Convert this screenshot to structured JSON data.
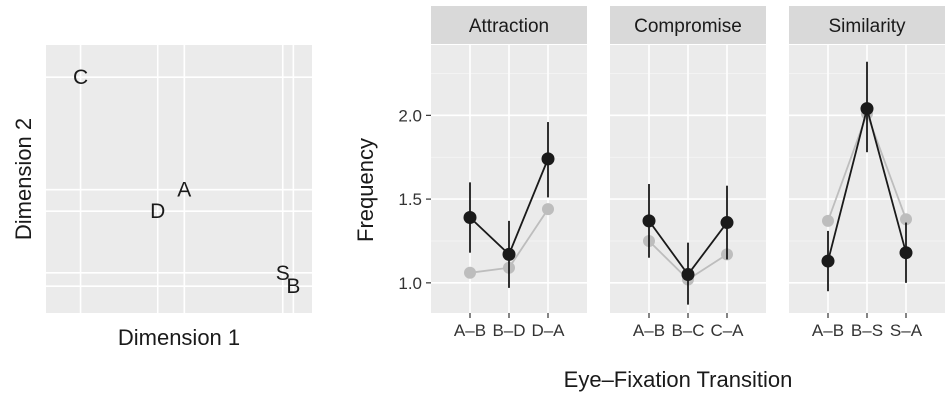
{
  "chart_data": [
    {
      "type": "scatter",
      "xlabel": "Dimension 1",
      "ylabel": "Dimension 2",
      "xlim": [
        0,
        10
      ],
      "ylim": [
        0,
        10
      ],
      "grid": true,
      "points": [
        {
          "label": "C",
          "x": 1.3,
          "y": 8.8
        },
        {
          "label": "A",
          "x": 5.2,
          "y": 4.6
        },
        {
          "label": "D",
          "x": 4.2,
          "y": 3.8
        },
        {
          "label": "S",
          "x": 8.9,
          "y": 1.5
        },
        {
          "label": "B",
          "x": 9.3,
          "y": 1.0
        }
      ]
    },
    {
      "type": "line",
      "xlabel": "Eye–Fixation Transition",
      "ylabel": "Frequency",
      "ylim": [
        0.82,
        2.42
      ],
      "yticks": [
        "1.0",
        "1.5",
        "2.0"
      ],
      "ytick_values": [
        1.0,
        1.5,
        2.0
      ],
      "grid": true,
      "colors": {
        "dark": "#1a1a1a",
        "light": "#bdbdbd"
      },
      "panels": [
        {
          "title": "Attraction",
          "categories": [
            "A–B",
            "B–D",
            "D–A"
          ],
          "series": [
            {
              "values": [
                1.06,
                1.09,
                1.44
              ]
            },
            {
              "values": [
                1.39,
                1.17,
                1.74
              ],
              "lower": [
                1.18,
                0.97,
                1.51
              ],
              "upper": [
                1.6,
                1.37,
                1.96
              ]
            }
          ]
        },
        {
          "title": "Compromise",
          "categories": [
            "A–B",
            "B–C",
            "C–A"
          ],
          "series": [
            {
              "values": [
                1.25,
                1.02,
                1.17
              ]
            },
            {
              "values": [
                1.37,
                1.05,
                1.36
              ],
              "lower": [
                1.15,
                0.87,
                1.14
              ],
              "upper": [
                1.59,
                1.24,
                1.58
              ]
            }
          ]
        },
        {
          "title": "Similarity",
          "categories": [
            "A–B",
            "B–S",
            "S–A"
          ],
          "series": [
            {
              "values": [
                1.37,
                2.01,
                1.38
              ]
            },
            {
              "values": [
                1.13,
                2.04,
                1.18
              ],
              "lower": [
                0.95,
                1.78,
                1.0
              ],
              "upper": [
                1.31,
                2.32,
                1.36
              ]
            }
          ]
        }
      ]
    }
  ]
}
